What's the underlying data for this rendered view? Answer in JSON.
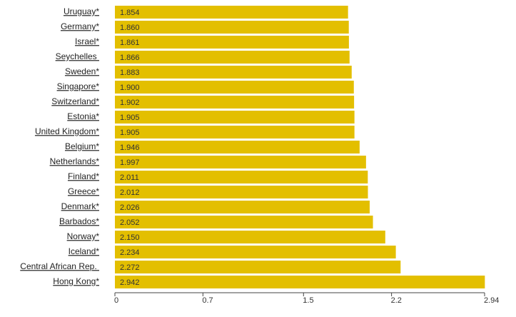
{
  "chart_data": {
    "type": "bar",
    "orientation": "horizontal",
    "categories": [
      "Uruguay*",
      "Germany*",
      "Israel*",
      "Seychelles ",
      "Sweden*",
      "Singapore*",
      "Switzerland*",
      "Estonia*",
      "United Kingdom*",
      "Belgium*",
      "Netherlands*",
      "Finland*",
      "Greece*",
      "Denmark*",
      "Barbados*",
      "Norway*",
      "Iceland*",
      "Central African Rep. ",
      "Hong Kong*"
    ],
    "values": [
      1.854,
      1.86,
      1.861,
      1.866,
      1.883,
      1.9,
      1.902,
      1.905,
      1.905,
      1.946,
      1.997,
      2.011,
      2.012,
      2.026,
      2.052,
      2.15,
      2.234,
      2.272,
      2.942
    ],
    "value_labels": [
      "1.854",
      "1.860",
      "1.861",
      "1.866",
      "1.883",
      "1.900",
      "1.902",
      "1.905",
      "1.905",
      "1.946",
      "1.997",
      "2.011",
      "2.012",
      "2.026",
      "2.052",
      "2.150",
      "2.234",
      "2.272",
      "2.942"
    ],
    "color": "#e3bf00",
    "xlim": [
      0,
      2.94
    ],
    "xticks": [
      0,
      0.7,
      1.5,
      2.2,
      2.94
    ],
    "grid": false
  }
}
